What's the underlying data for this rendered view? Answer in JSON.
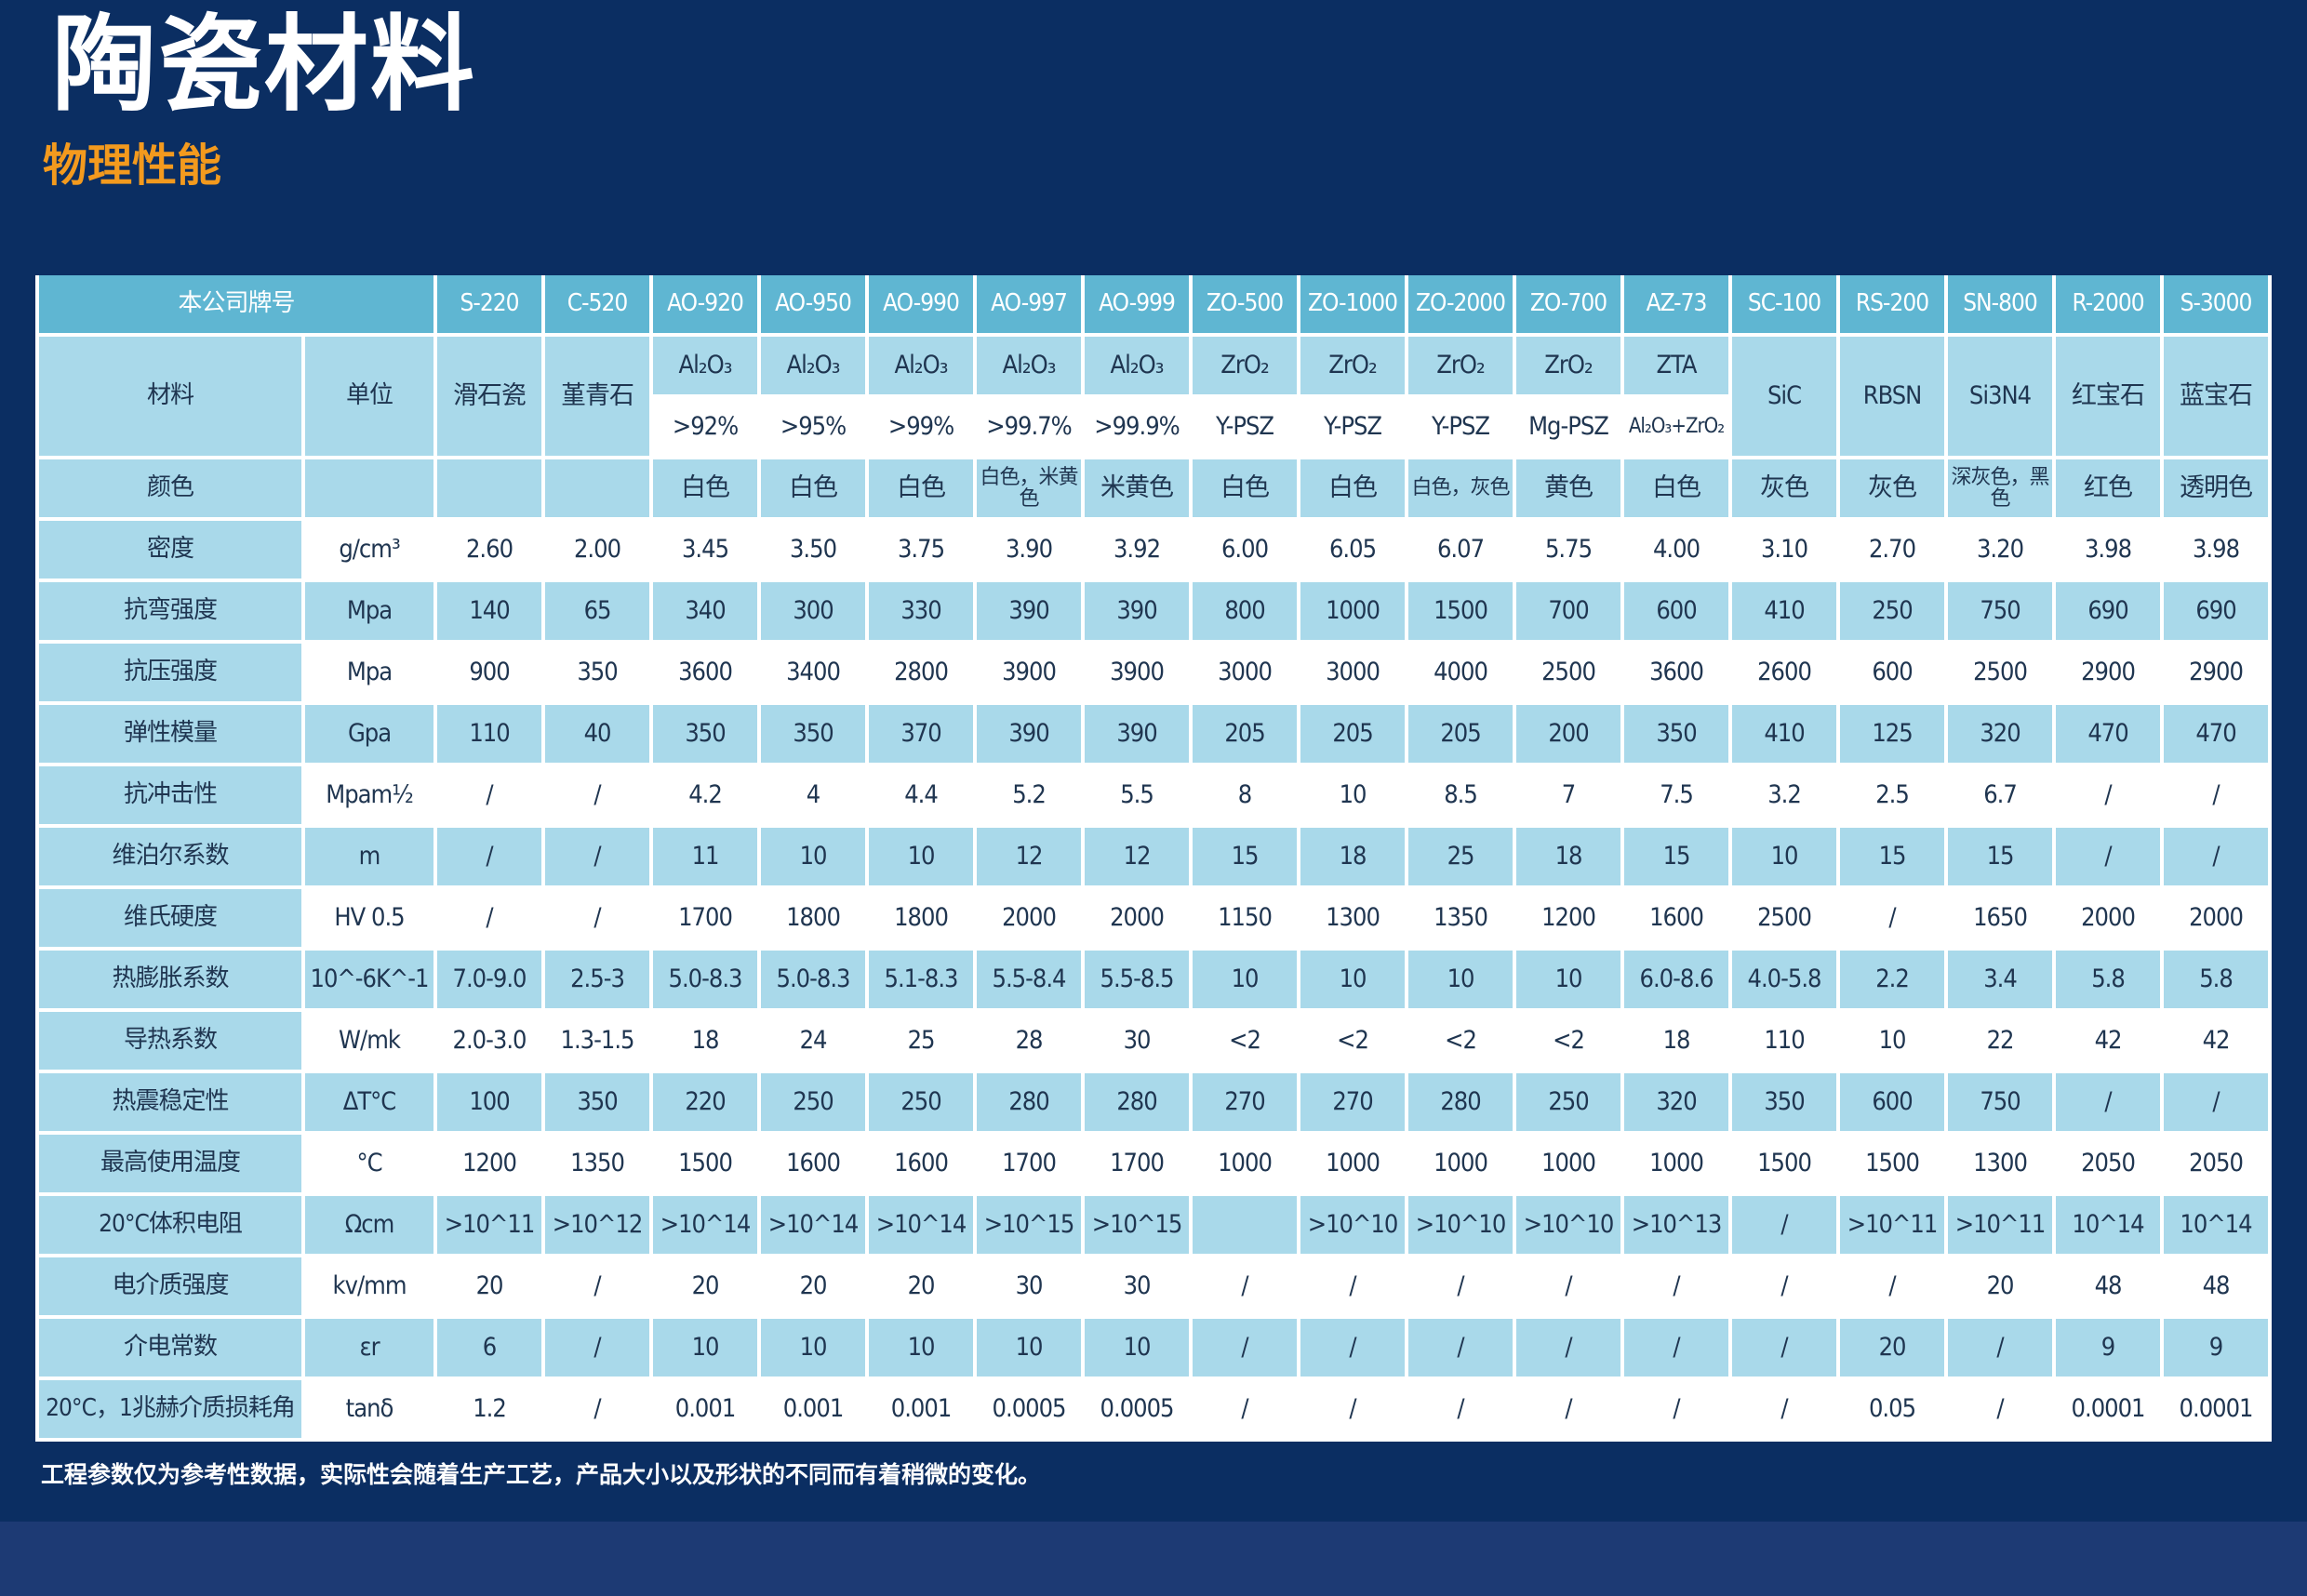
{
  "title": "陶瓷材料",
  "subtitle": "物理性能",
  "footnote": "工程参数仅为参考性数据，实际性会随着生产工艺，产品大小以及形状的不同而有着稍微的变化。",
  "table": {
    "header_label": "本公司牌号",
    "grades": [
      "S-220",
      "C-520",
      "AO-920",
      "AO-950",
      "AO-990",
      "AO-997",
      "AO-999",
      "ZO-500",
      "ZO-1000",
      "ZO-2000",
      "ZO-700",
      "AZ-73",
      "SC-100",
      "RS-200",
      "SN-800",
      "R-2000",
      "S-3000"
    ],
    "material_label": "材料",
    "unit_label": "单位",
    "material_single": [
      "滑石瓷",
      "堇青石"
    ],
    "material_top": [
      "Al₂O₃",
      "Al₂O₃",
      "Al₂O₃",
      "Al₂O₃",
      "Al₂O₃",
      "ZrO₂",
      "ZrO₂",
      "ZrO₂",
      "ZrO₂",
      "ZTA"
    ],
    "material_bottom": [
      ">92%",
      ">95%",
      ">99%",
      ">99.7%",
      ">99.9%",
      "Y-PSZ",
      "Y-PSZ",
      "Y-PSZ",
      "Mg-PSZ",
      "Al₂O₃+ZrO₂"
    ],
    "material_tail": [
      "SiC",
      "RBSN",
      "Si3N4",
      "红宝石",
      "蓝宝石"
    ],
    "color_row": {
      "label": "颜色",
      "unit": "",
      "values": [
        "",
        "",
        "白色",
        "白色",
        "白色",
        "白色，米黄色",
        "米黄色",
        "白色",
        "白色",
        "白色，灰色",
        "黄色",
        "白色",
        "灰色",
        "灰色",
        "深灰色，黑色",
        "红色",
        "透明色"
      ]
    },
    "rows": [
      {
        "label": "密度",
        "unit": "g/cm³",
        "values": [
          "2.60",
          "2.00",
          "3.45",
          "3.50",
          "3.75",
          "3.90",
          "3.92",
          "6.00",
          "6.05",
          "6.07",
          "5.75",
          "4.00",
          "3.10",
          "2.70",
          "3.20",
          "3.98",
          "3.98"
        ]
      },
      {
        "label": "抗弯强度",
        "unit": "Mpa",
        "values": [
          "140",
          "65",
          "340",
          "300",
          "330",
          "390",
          "390",
          "800",
          "1000",
          "1500",
          "700",
          "600",
          "410",
          "250",
          "750",
          "690",
          "690"
        ]
      },
      {
        "label": "抗压强度",
        "unit": "Mpa",
        "values": [
          "900",
          "350",
          "3600",
          "3400",
          "2800",
          "3900",
          "3900",
          "3000",
          "3000",
          "4000",
          "2500",
          "3600",
          "2600",
          "600",
          "2500",
          "2900",
          "2900"
        ]
      },
      {
        "label": "弹性模量",
        "unit": "Gpa",
        "values": [
          "110",
          "40",
          "350",
          "350",
          "370",
          "390",
          "390",
          "205",
          "205",
          "205",
          "200",
          "350",
          "410",
          "125",
          "320",
          "470",
          "470"
        ]
      },
      {
        "label": "抗冲击性",
        "unit": "Mpam½",
        "values": [
          "/",
          "/",
          "4.2",
          "4",
          "4.4",
          "5.2",
          "5.5",
          "8",
          "10",
          "8.5",
          "7",
          "7.5",
          "3.2",
          "2.5",
          "6.7",
          "/",
          "/"
        ]
      },
      {
        "label": "维泊尔系数",
        "unit": "m",
        "values": [
          "/",
          "/",
          "11",
          "10",
          "10",
          "12",
          "12",
          "15",
          "18",
          "25",
          "18",
          "15",
          "10",
          "15",
          "15",
          "/",
          "/"
        ]
      },
      {
        "label": "维氏硬度",
        "unit": "HV 0.5",
        "values": [
          "/",
          "/",
          "1700",
          "1800",
          "1800",
          "2000",
          "2000",
          "1150",
          "1300",
          "1350",
          "1200",
          "1600",
          "2500",
          "/",
          "1650",
          "2000",
          "2000"
        ]
      },
      {
        "label": "热膨胀系数",
        "unit": "10^-6K^-1",
        "values": [
          "7.0-9.0",
          "2.5-3",
          "5.0-8.3",
          "5.0-8.3",
          "5.1-8.3",
          "5.5-8.4",
          "5.5-8.5",
          "10",
          "10",
          "10",
          "10",
          "6.0-8.6",
          "4.0-5.8",
          "2.2",
          "3.4",
          "5.8",
          "5.8"
        ]
      },
      {
        "label": "导热系数",
        "unit": "W/mk",
        "values": [
          "2.0-3.0",
          "1.3-1.5",
          "18",
          "24",
          "25",
          "28",
          "30",
          "<2",
          "<2",
          "<2",
          "<2",
          "18",
          "110",
          "10",
          "22",
          "42",
          "42"
        ]
      },
      {
        "label": "热震稳定性",
        "unit": "ΔT°C",
        "values": [
          "100",
          "350",
          "220",
          "250",
          "250",
          "280",
          "280",
          "270",
          "270",
          "280",
          "250",
          "320",
          "350",
          "600",
          "750",
          "/",
          "/"
        ]
      },
      {
        "label": "最高使用温度",
        "unit": "°C",
        "values": [
          "1200",
          "1350",
          "1500",
          "1600",
          "1600",
          "1700",
          "1700",
          "1000",
          "1000",
          "1000",
          "1000",
          "1000",
          "1500",
          "1500",
          "1300",
          "2050",
          "2050"
        ]
      },
      {
        "label": "20°C体积电阻",
        "unit": "Ωcm",
        "values": [
          ">10^11",
          ">10^12",
          ">10^14",
          ">10^14",
          ">10^14",
          ">10^15",
          ">10^15",
          "",
          ">10^10",
          ">10^10",
          ">10^10",
          ">10^13",
          "/",
          ">10^11",
          ">10^11",
          "10^14",
          "10^14"
        ]
      },
      {
        "label": "电介质强度",
        "unit": "kv/mm",
        "values": [
          "20",
          "/",
          "20",
          "20",
          "20",
          "30",
          "30",
          "/",
          "/",
          "/",
          "/",
          "/",
          "/",
          "/",
          "20",
          "48",
          "48"
        ]
      },
      {
        "label": "介电常数",
        "unit": "εr",
        "values": [
          "6",
          "/",
          "10",
          "10",
          "10",
          "10",
          "10",
          "/",
          "/",
          "/",
          "/",
          "/",
          "/",
          "20",
          "/",
          "9",
          "9"
        ]
      },
      {
        "label": "20°C，1兆赫介质损耗角",
        "unit": "tanδ",
        "values": [
          "1.2",
          "/",
          "0.001",
          "0.001",
          "0.001",
          "0.0005",
          "0.0005",
          "/",
          "/",
          "/",
          "/",
          "/",
          "/",
          "0.05",
          "/",
          "0.0001",
          "0.0001"
        ]
      }
    ]
  }
}
